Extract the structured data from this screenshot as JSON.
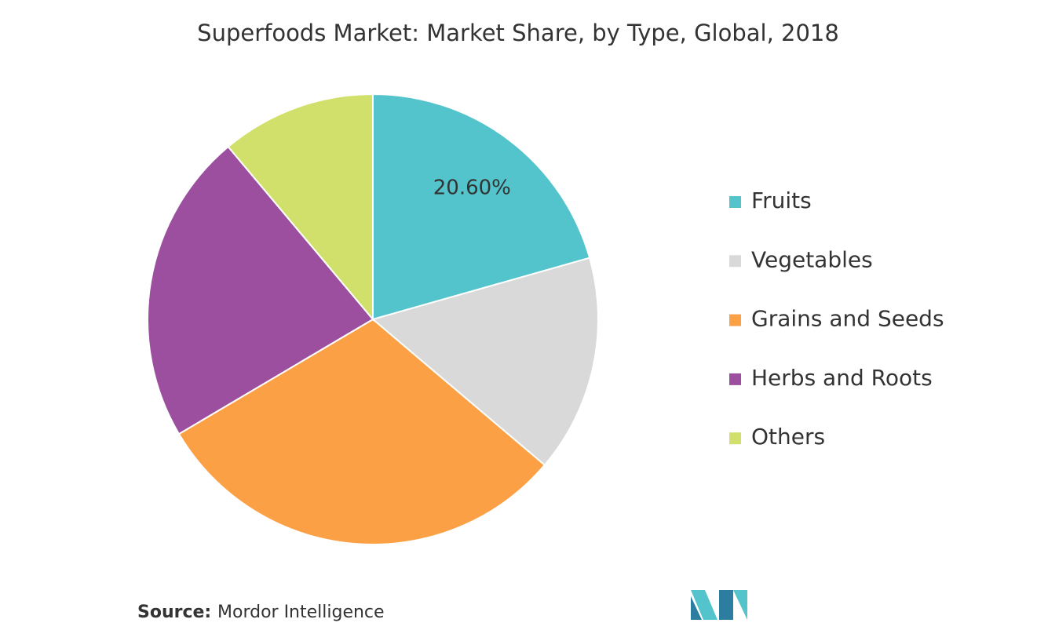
{
  "chart_data": {
    "type": "pie",
    "title": "Superfoods Market: Market Share, by Type, Global, 2018",
    "categories": [
      "Fruits",
      "Vegetables",
      "Grains and Seeds",
      "Herbs and Roots",
      "Others"
    ],
    "values": [
      20.6,
      15.6,
      30.3,
      22.4,
      11.1
    ],
    "value_labels": [
      "20.60%",
      null,
      null,
      null,
      null
    ],
    "colors": [
      "#53c4cb",
      "#d9d9d9",
      "#fca045",
      "#9b4f9e",
      "#d1e06a"
    ],
    "legend": "right",
    "source_label": "Source:",
    "source": "Mordor Intelligence"
  }
}
